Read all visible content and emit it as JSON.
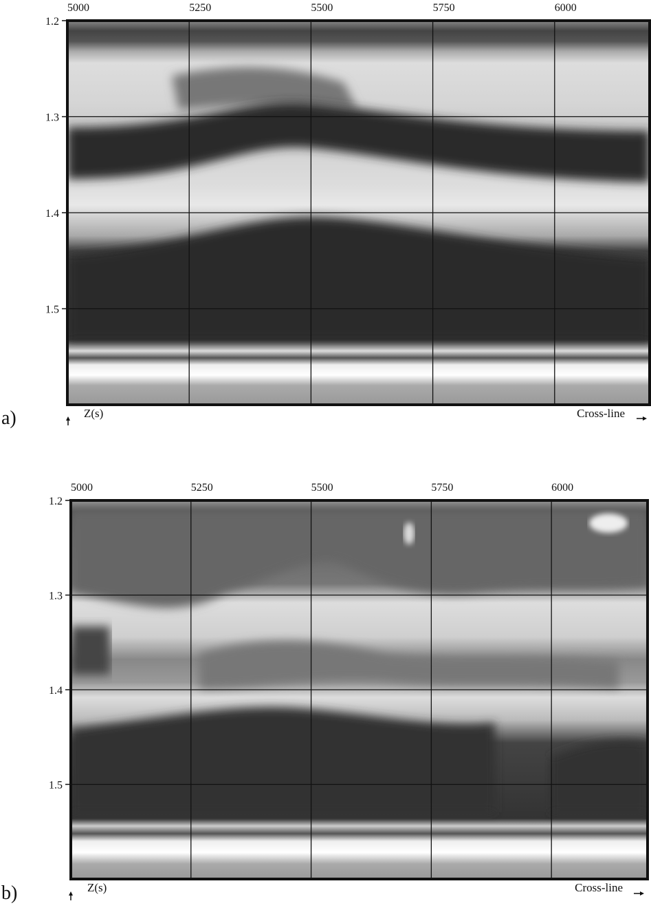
{
  "chart_data": [
    {
      "type": "image",
      "panel_label": "a)",
      "x_label": "Cross-line",
      "y_label": "Z(s)",
      "xlim": [
        5000,
        6195
      ],
      "ylim": [
        1.2,
        1.6
      ],
      "y_inverted": true,
      "xticks": [
        5000,
        5250,
        5500,
        5750,
        6000
      ],
      "yticks": [
        1.2,
        1.3,
        1.4,
        1.5
      ],
      "grid": true
    },
    {
      "type": "image",
      "panel_label": "b)",
      "x_label": "Cross-line",
      "y_label": "Z(s)",
      "xlim": [
        5000,
        6200
      ],
      "ylim": [
        1.2,
        1.6
      ],
      "y_inverted": true,
      "xticks": [
        5000,
        5250,
        5500,
        5750,
        6000
      ],
      "yticks": [
        1.2,
        1.3,
        1.4,
        1.5
      ],
      "grid": true
    }
  ]
}
